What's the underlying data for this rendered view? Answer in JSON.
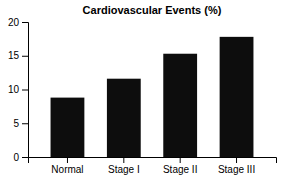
{
  "chart_data": {
    "type": "bar",
    "title": "Cardiovascular Events (%)",
    "categories": [
      "Normal",
      "Stage I",
      "Stage II",
      "Stage III"
    ],
    "values": [
      8.8,
      11.6,
      15.3,
      17.8
    ],
    "color": "#0d0d0d",
    "ylim": [
      0,
      20
    ],
    "yticks": [
      0,
      5,
      10,
      15,
      20
    ],
    "grid": false
  }
}
